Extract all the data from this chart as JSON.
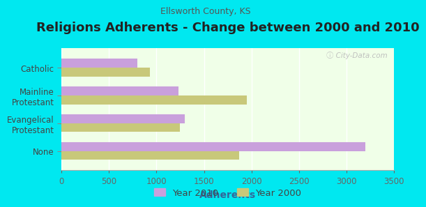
{
  "title": "Religions Adherents - Change between 2000 and 2010",
  "subtitle": "Ellsworth County, KS",
  "xlabel": "Adherents",
  "categories": [
    "None",
    "Evangelical\nProtestant",
    "Mainline\nProtestant",
    "Catholic"
  ],
  "year2010": [
    3200,
    1300,
    1230,
    800
  ],
  "year2000": [
    1870,
    1250,
    1950,
    930
  ],
  "color_2010": "#c9a0dc",
  "color_2000": "#c8c87a",
  "background_color": "#00e8f0",
  "plot_background": "#f0ffe8",
  "xlim": [
    0,
    3500
  ],
  "xticks": [
    0,
    500,
    1000,
    1500,
    2000,
    2500,
    3000,
    3500
  ],
  "legend_year2010": "Year 2010",
  "legend_year2000": "Year 2000",
  "title_fontsize": 13,
  "subtitle_fontsize": 9,
  "bar_height": 0.32,
  "watermark": "ⓘ City-Data.com"
}
